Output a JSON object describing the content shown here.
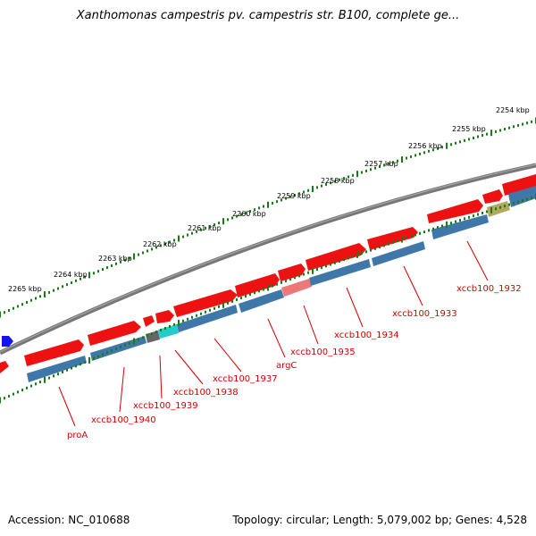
{
  "title": "Xanthomonas campestris pv. campestris str. B100, complete ge...",
  "footer": {
    "accession": "Accession: NC_010688",
    "summary": "Topology: circular; Length: 5,079,002 bp; Genes: 4,528"
  },
  "colors": {
    "forward_cds": "#ee1111",
    "reverse_feature": "#3f78a8",
    "backbone": "#777777",
    "tick": "#1a7a1a",
    "label": "#d40000",
    "rrna_highlight": "#ee7777",
    "trna_highlight": "#22cccc",
    "gray_feature": "#666666",
    "olive_feature": "#b3a860",
    "blue_arrow": "#1414ee"
  },
  "chart_data": {
    "type": "genome-map",
    "tick_labels": [
      "2254 kbp",
      "2255 kbp",
      "2256 kbp",
      "2257 kbp",
      "2258 kbp",
      "2259 kbp",
      "2260 kbp",
      "2261 kbp",
      "2262 kbp",
      "2263 kbp",
      "2264 kbp",
      "2265 kbp"
    ],
    "gene_labels": [
      "xccb100_1932",
      "xccb100_1933",
      "xccb100_1934",
      "xccb100_1935",
      "argC",
      "xccb100_1937",
      "xccb100_1938",
      "xccb100_1939",
      "xccb100_1940",
      "proA"
    ]
  }
}
